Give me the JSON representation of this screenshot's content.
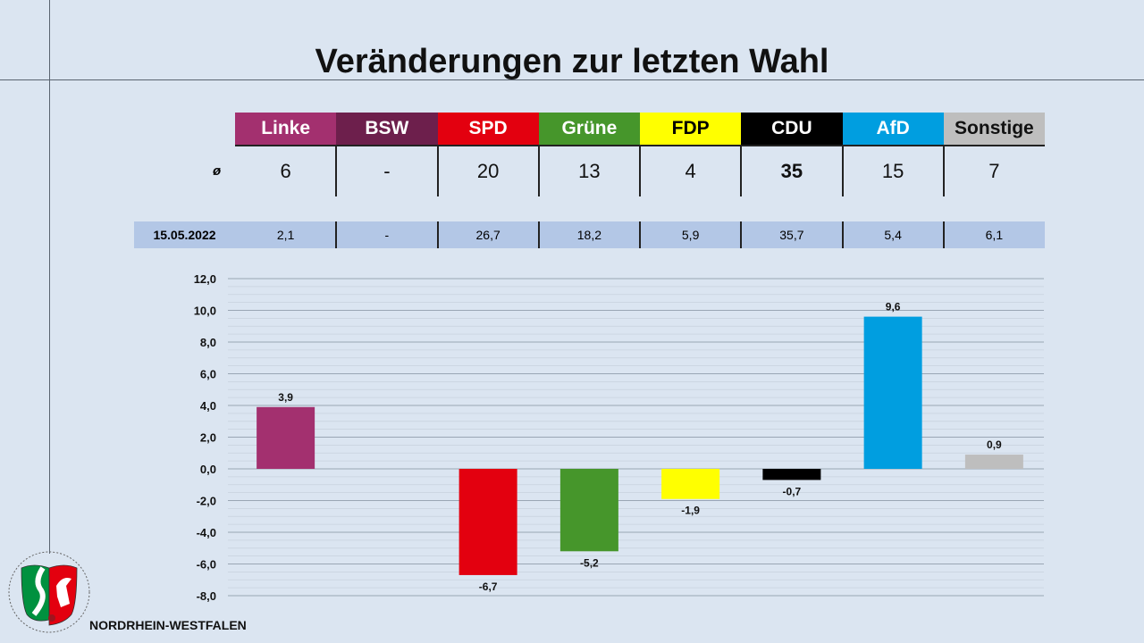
{
  "title": "Veränderungen zur letzten Wahl",
  "avg_symbol": "ø",
  "parties": [
    {
      "name": "Linke",
      "color": "#a3306f",
      "text": "#ffffff",
      "avg": "6",
      "prev": "2,1",
      "change": 3.9,
      "change_label": "3,9"
    },
    {
      "name": "BSW",
      "color": "#6d1f4c",
      "text": "#ffffff",
      "avg": "-",
      "prev": "-",
      "change": null,
      "change_label": ""
    },
    {
      "name": "SPD",
      "color": "#e3000f",
      "text": "#ffffff",
      "avg": "20",
      "prev": "26,7",
      "change": -6.7,
      "change_label": "-6,7"
    },
    {
      "name": "Grüne",
      "color": "#46962b",
      "text": "#ffffff",
      "avg": "13",
      "prev": "18,2",
      "change": -5.2,
      "change_label": "-5,2"
    },
    {
      "name": "FDP",
      "color": "#ffff00",
      "text": "#000000",
      "avg": "4",
      "prev": "5,9",
      "change": -1.9,
      "change_label": "-1,9"
    },
    {
      "name": "CDU",
      "color": "#000000",
      "text": "#ffffff",
      "avg": "35",
      "avg_bold": true,
      "prev": "35,7",
      "change": -0.7,
      "change_label": "-0,7"
    },
    {
      "name": "AfD",
      "color": "#009ee0",
      "text": "#ffffff",
      "avg": "15",
      "prev": "5,4",
      "change": 9.6,
      "change_label": "9,6"
    },
    {
      "name": "Sonstige",
      "color": "#bebebe",
      "text": "#111111",
      "avg": "7",
      "prev": "6,1",
      "change": 0.9,
      "change_label": "0,9"
    }
  ],
  "prev_election_date": "15.05.2022",
  "chart_data": {
    "type": "bar",
    "categories": [
      "Linke",
      "BSW",
      "SPD",
      "Grüne",
      "FDP",
      "CDU",
      "AfD",
      "Sonstige"
    ],
    "values": [
      3.9,
      null,
      -6.7,
      -5.2,
      -1.9,
      -0.7,
      9.6,
      0.9
    ],
    "data_labels": [
      "3,9",
      "",
      "-6,7",
      "-5,2",
      "-1,9",
      "-0,7",
      "9,6",
      "0,9"
    ],
    "ylim": [
      -8,
      12
    ],
    "yticks": [
      "12,0",
      "10,0",
      "8,0",
      "6,0",
      "4,0",
      "2,0",
      "0,0",
      "-2,0",
      "-4,0",
      "-6,0",
      "-8,0"
    ],
    "grid": true
  },
  "footer": {
    "state": "NORDRHEIN-WESTFALEN"
  }
}
